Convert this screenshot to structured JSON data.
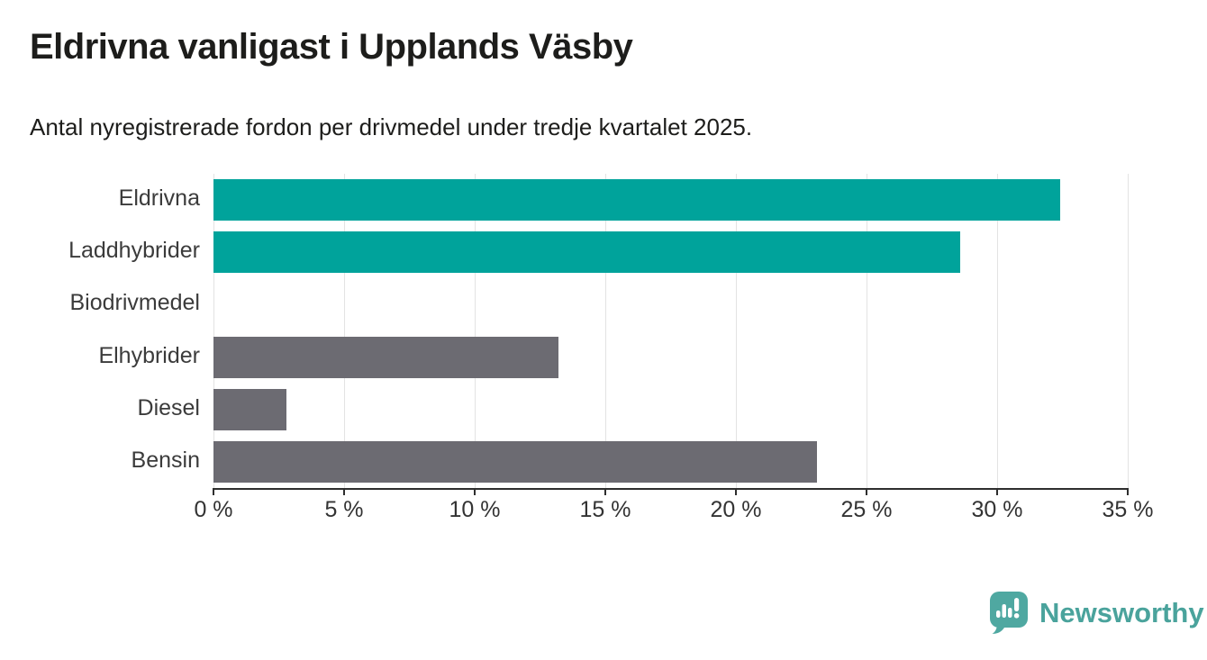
{
  "header": {
    "title": "Eldrivna vanligast i Upplands Väsby",
    "subtitle": "Antal nyregistrerade fordon per drivmedel under tredje kvartalet 2025."
  },
  "chart_data": {
    "type": "bar",
    "orientation": "horizontal",
    "title": "Eldrivna vanligast i Upplands Väsby",
    "subtitle": "Antal nyregistrerade fordon per drivmedel under tredje kvartalet 2025.",
    "categories": [
      "Eldrivna",
      "Laddhybrider",
      "Biodrivmedel",
      "Elhybrider",
      "Diesel",
      "Bensin"
    ],
    "values": [
      32.4,
      28.6,
      0,
      13.2,
      2.8,
      23.1
    ],
    "unit": "%",
    "bar_colors": [
      "#00a39b",
      "#00a39b",
      "#6c6b72",
      "#6c6b72",
      "#6c6b72",
      "#6c6b72"
    ],
    "xlabel": "",
    "ylabel": "",
    "xlim": [
      0,
      35
    ],
    "x_ticks": [
      0,
      5,
      10,
      15,
      20,
      25,
      30,
      35
    ],
    "x_tick_labels": [
      "0 %",
      "5 %",
      "10 %",
      "15 %",
      "20 %",
      "25 %",
      "30 %",
      "35 %"
    ],
    "grid": "vertical-gridlines-on",
    "legend": "none"
  },
  "colors": {
    "accent_teal": "#00a39b",
    "neutral_gray": "#6c6b72",
    "gridline": "#e3e3e3",
    "axis": "#2e2e2e",
    "text_dark": "#1d1d1b",
    "brand_teal": "#4aa39c"
  },
  "footer": {
    "brand": "Newsworthy",
    "logo_icon": "newsworthy-speech-bubble-chart-icon"
  }
}
